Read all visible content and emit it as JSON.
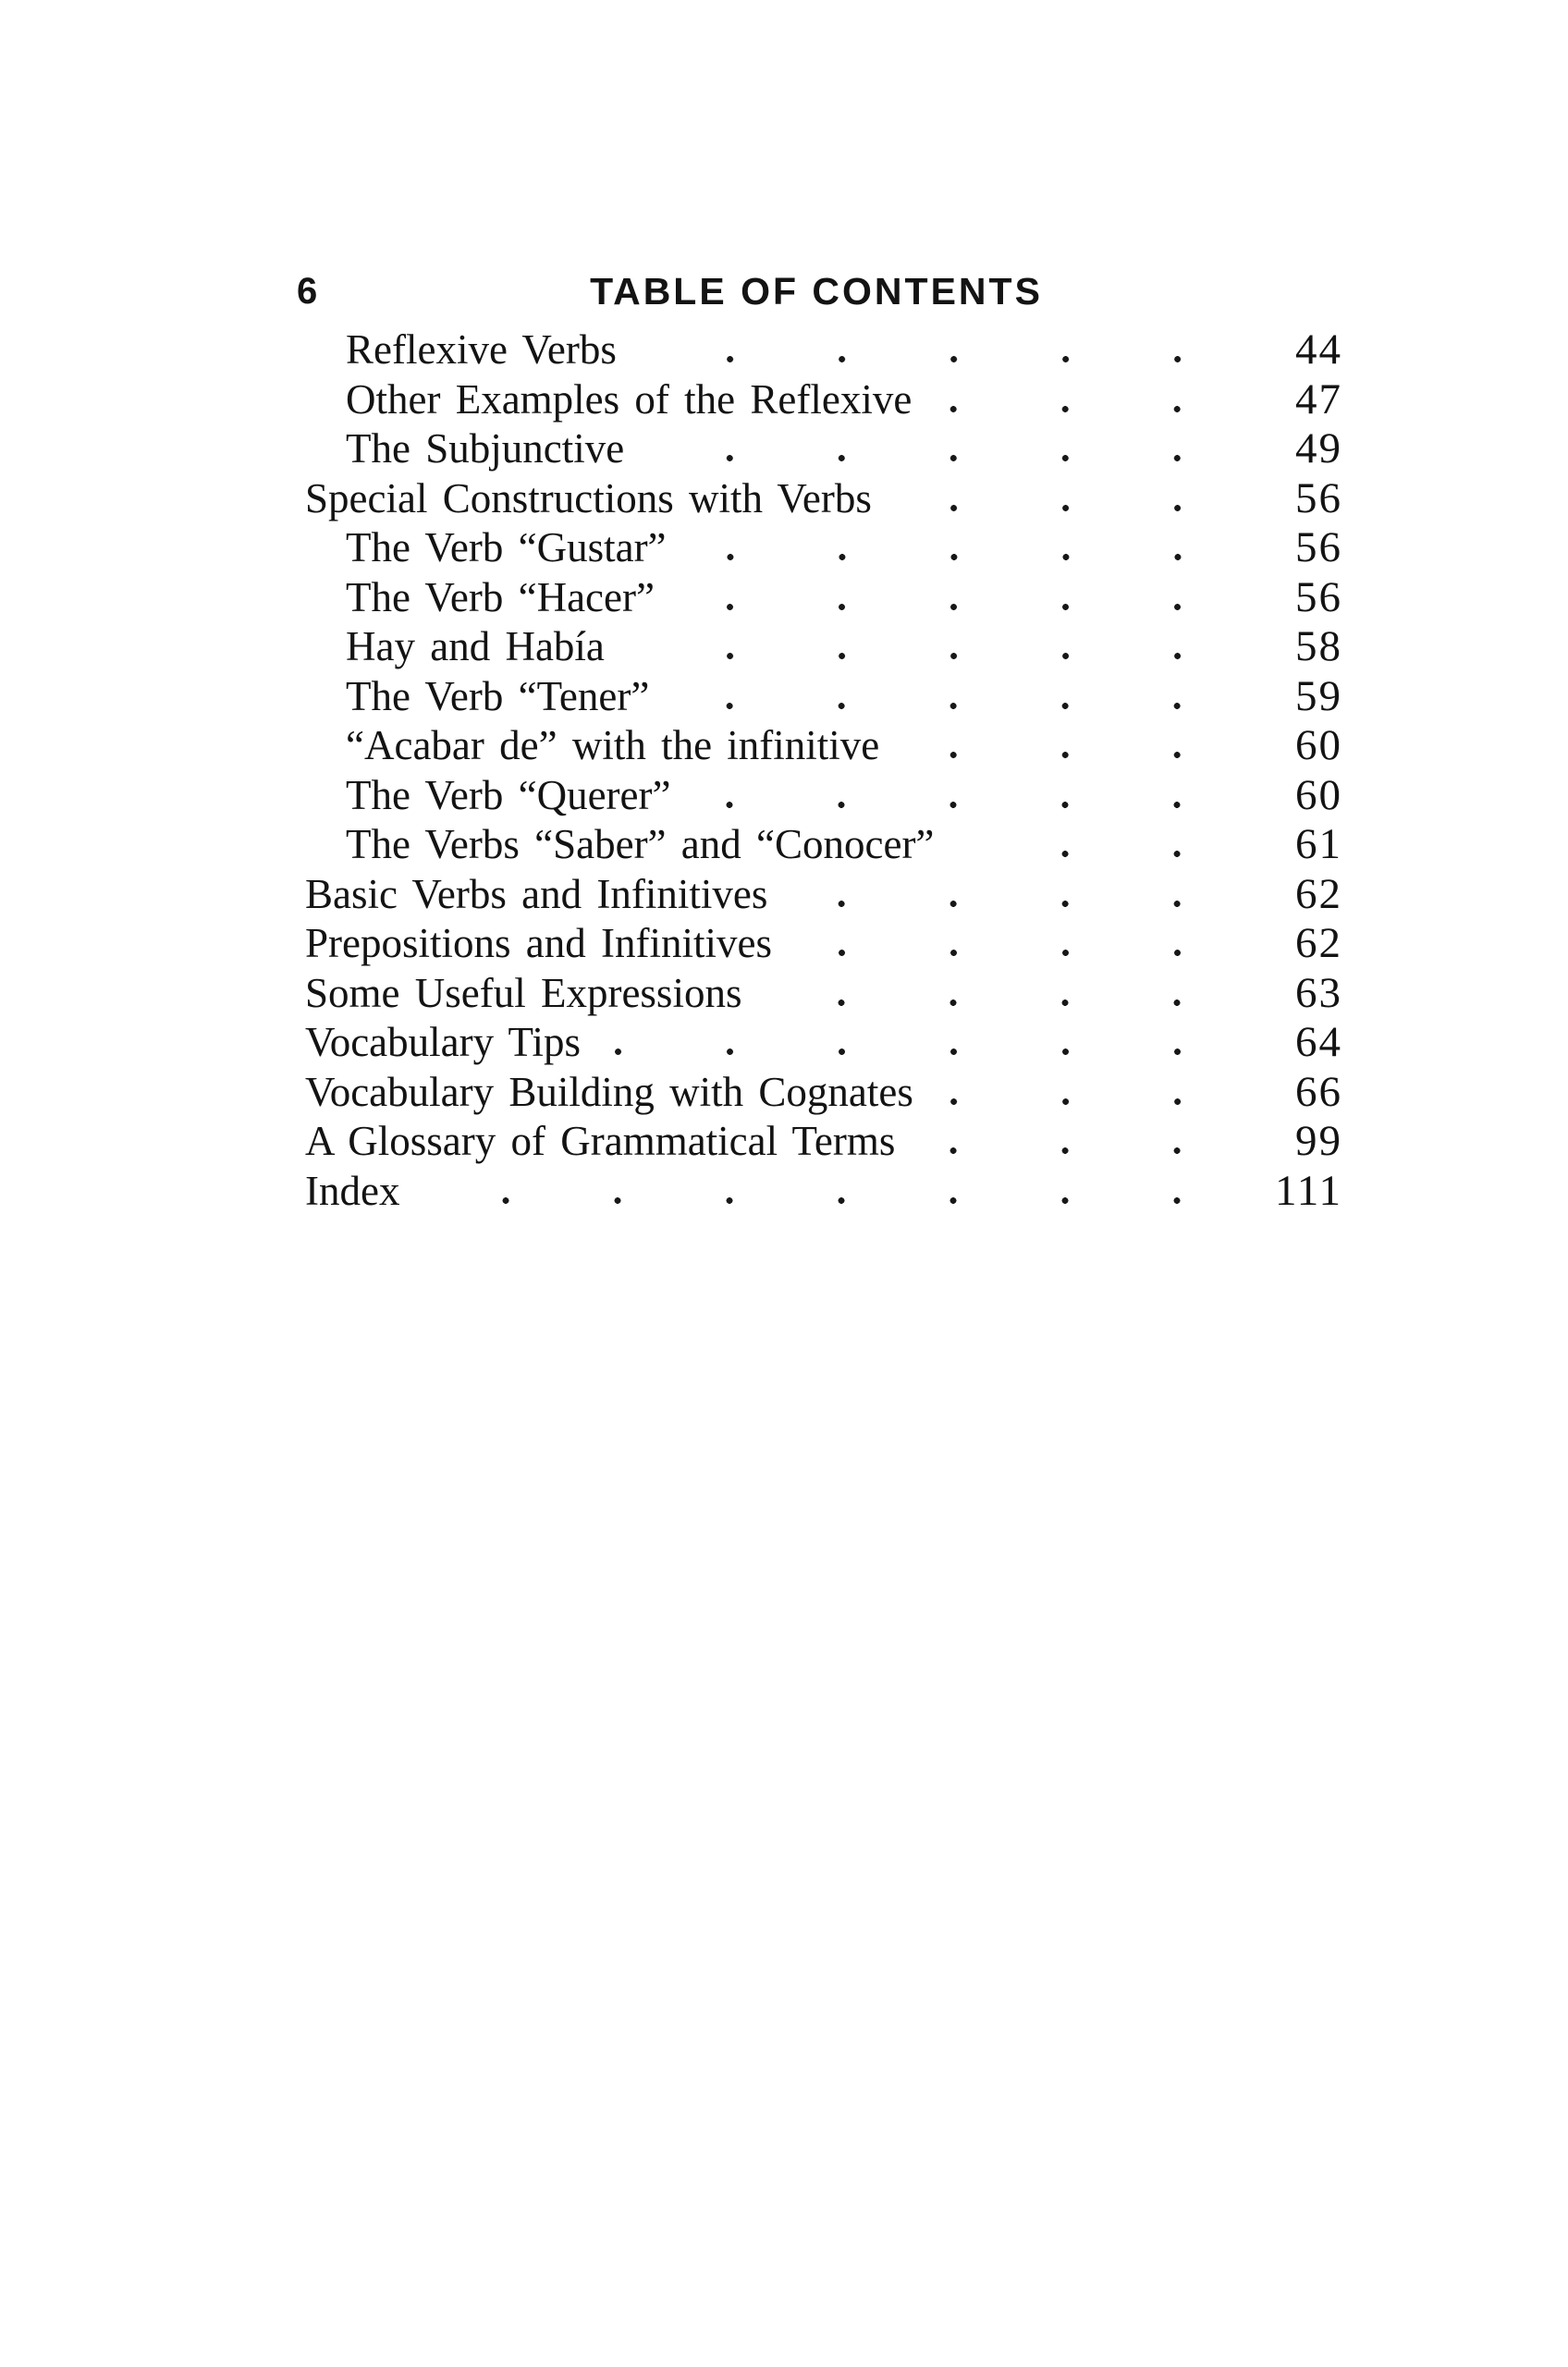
{
  "header": {
    "folio": "6",
    "title": "TABLE OF CONTENTS"
  },
  "toc": {
    "entries": [
      {
        "title": "Reflexive Verbs",
        "page": "44",
        "indent": true
      },
      {
        "title": "Other Examples of the Reflexive",
        "page": "47",
        "indent": true
      },
      {
        "title": "The Subjunctive",
        "page": "49",
        "indent": true
      },
      {
        "title": "Special Constructions with Verbs",
        "page": "56",
        "indent": false
      },
      {
        "title": "The Verb “Gustar”",
        "page": "56",
        "indent": true
      },
      {
        "title": "The Verb “Hacer”",
        "page": "56",
        "indent": true
      },
      {
        "title": "Hay and Había",
        "page": "58",
        "indent": true
      },
      {
        "title": "The Verb “Tener”",
        "page": "59",
        "indent": true
      },
      {
        "title": "“Acabar de” with the infinitive",
        "page": "60",
        "indent": true
      },
      {
        "title": "The Verb “Querer”",
        "page": "60",
        "indent": true
      },
      {
        "title": "The Verbs “Saber” and “Conocer”",
        "page": "61",
        "indent": true
      },
      {
        "title": "Basic Verbs and Infinitives",
        "page": "62",
        "indent": false
      },
      {
        "title": "Prepositions and Infinitives",
        "page": "62",
        "indent": false
      },
      {
        "title": "Some Useful Expressions",
        "page": "63",
        "indent": false
      },
      {
        "title": "Vocabulary Tips",
        "page": "64",
        "indent": false
      },
      {
        "title": "Vocabulary Building with Cognates",
        "page": "66",
        "indent": false
      },
      {
        "title": "A Glossary of Grammatical Terms",
        "page": "99",
        "indent": false
      },
      {
        "title": "Index",
        "page": "111",
        "indent": false
      }
    ]
  }
}
